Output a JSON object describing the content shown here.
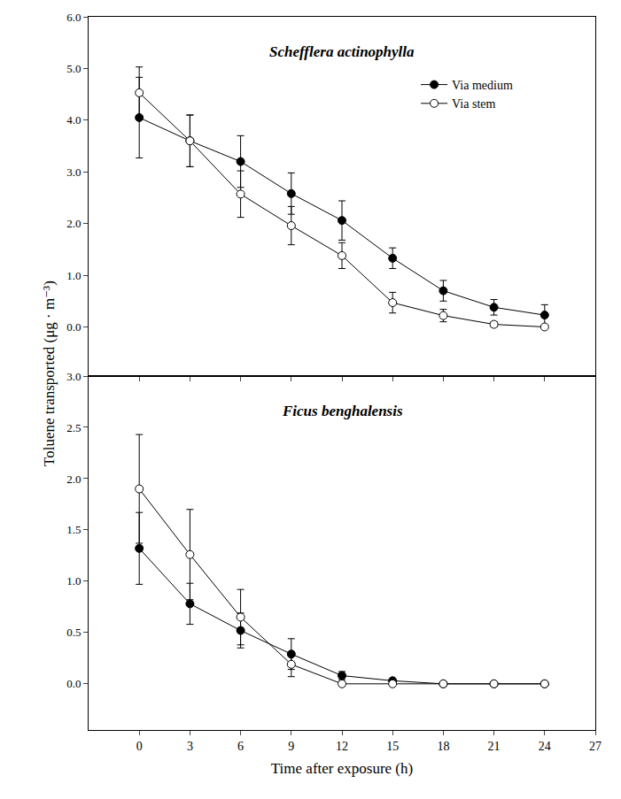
{
  "chart_data": [
    {
      "type": "line",
      "title": "Schefflera actinophylla",
      "ylabel": "Toluene transported (μg · m⁻³)",
      "legend": "top right",
      "tick_labels": "y",
      "x": [
        0,
        3,
        6,
        9,
        12,
        15,
        18,
        21,
        24
      ],
      "xlim": [
        -3,
        27
      ],
      "xticks": [
        0,
        3,
        6,
        9,
        12,
        15,
        18,
        21,
        24,
        27
      ],
      "ylim": [
        -0.95,
        6.0
      ],
      "yticks": [
        {
          "value": 0,
          "label": "0.0"
        },
        {
          "value": 1,
          "label": "1.0"
        },
        {
          "value": 2,
          "label": "2.0"
        },
        {
          "value": 3,
          "label": "3.0"
        },
        {
          "value": 4,
          "label": "4.0"
        },
        {
          "value": 5,
          "label": "5.0"
        },
        {
          "value": 6,
          "label": "6.0"
        }
      ],
      "series": [
        {
          "name": "Via medium",
          "color": "#000000",
          "marker": "filled circle",
          "values": [
            4.05,
            3.6,
            3.2,
            2.58,
            2.06,
            1.33,
            0.7,
            0.38,
            0.23
          ],
          "error": [
            0.78,
            0.5,
            0.5,
            0.4,
            0.38,
            0.2,
            0.2,
            0.15,
            0.2
          ]
        },
        {
          "name": "Via stem",
          "color": "#000000",
          "marker": "open circle",
          "values": [
            4.53,
            3.6,
            2.57,
            1.96,
            1.38,
            0.47,
            0.22,
            0.05,
            0.0
          ],
          "error": [
            0.5,
            0.5,
            0.45,
            0.37,
            0.25,
            0.2,
            0.12,
            0.05,
            0.02
          ]
        }
      ]
    },
    {
      "type": "line",
      "title": "Ficus benghalensis",
      "xlabel": "Time after exposure (h)",
      "x": [
        0,
        3,
        6,
        9,
        12,
        15,
        18,
        21,
        24
      ],
      "xlim": [
        -3,
        27
      ],
      "xticks": [
        0,
        3,
        6,
        9,
        12,
        15,
        18,
        21,
        24,
        27
      ],
      "ylim": [
        -0.45,
        3.0
      ],
      "yticks": [
        {
          "value": 0,
          "label": "0.0"
        },
        {
          "value": 0.5,
          "label": "0.5"
        },
        {
          "value": 1,
          "label": "1.0"
        },
        {
          "value": 1.5,
          "label": "1.5"
        },
        {
          "value": 2,
          "label": "2.0"
        },
        {
          "value": 2.5,
          "label": "2.5"
        },
        {
          "value": 3,
          "label": "3.0"
        }
      ],
      "series": [
        {
          "name": "Via medium",
          "color": "#000000",
          "marker": "filled circle",
          "values": [
            1.32,
            0.78,
            0.52,
            0.29,
            0.08,
            0.03,
            0,
            0,
            0
          ],
          "error": [
            0.35,
            0.2,
            0.17,
            0.15,
            0.04,
            0.01,
            0,
            0,
            0
          ]
        },
        {
          "name": "Via stem",
          "color": "#000000",
          "marker": "open circle",
          "values": [
            1.9,
            1.26,
            0.65,
            0.19,
            0,
            0,
            0,
            0,
            0
          ],
          "error": [
            0.53,
            0.44,
            0.27,
            0.12,
            0,
            0,
            0,
            0,
            0
          ]
        }
      ]
    }
  ]
}
